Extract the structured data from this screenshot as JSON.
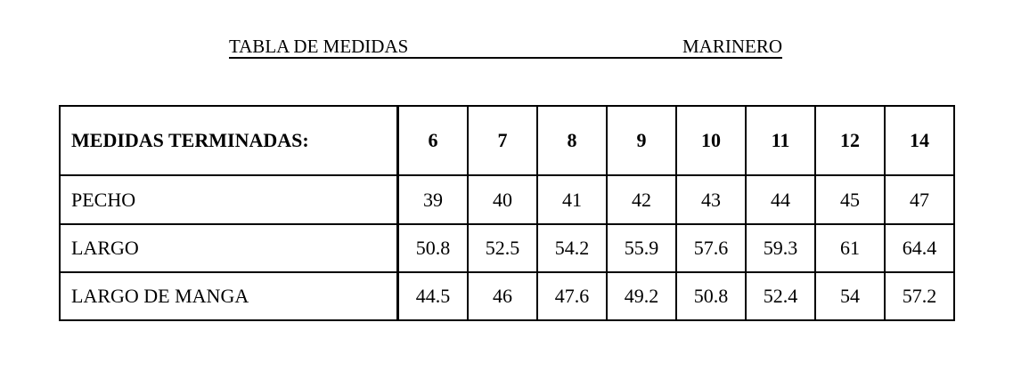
{
  "header": {
    "title": "TABLA DE MEDIDAS",
    "model": "MARINERO"
  },
  "table": {
    "header_label": "MEDIDAS TERMINADAS:",
    "sizes": [
      "6",
      "7",
      "8",
      "9",
      "10",
      "11",
      "12",
      "14"
    ],
    "rows": [
      {
        "label": "PECHO",
        "values": [
          "39",
          "40",
          "41",
          "42",
          "43",
          "44",
          "45",
          "47"
        ]
      },
      {
        "label": "LARGO",
        "values": [
          "50.8",
          "52.5",
          "54.2",
          "55.9",
          "57.6",
          "59.3",
          "61",
          "64.4"
        ]
      },
      {
        "label": "LARGO DE MANGA",
        "values": [
          "44.5",
          "46",
          "47.6",
          "49.2",
          "50.8",
          "52.4",
          "54",
          "57.2"
        ]
      }
    ]
  }
}
